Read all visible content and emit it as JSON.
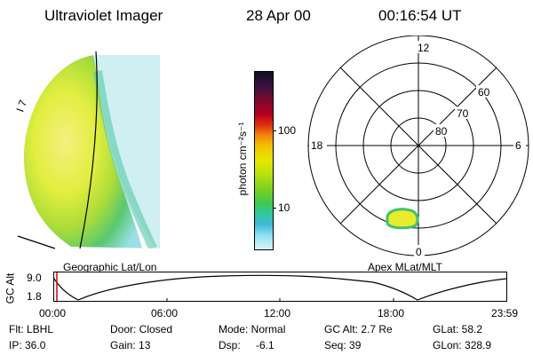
{
  "header": {
    "title": "Ultraviolet Imager",
    "date": "28 Apr 00",
    "time": "00:16:54 UT"
  },
  "image_panel": {
    "coast_label": "I 7",
    "caption": "Geographic Lat/Lon"
  },
  "colorbar": {
    "unit_label": "photon cm⁻²s⁻¹",
    "tick_100": "100",
    "tick_10": "10",
    "colors": [
      "#101020",
      "#3a1040",
      "#7a0a2a",
      "#b40020",
      "#e03010",
      "#f08a10",
      "#f2c400",
      "#e6e800",
      "#b8e010",
      "#7cd020",
      "#40c850",
      "#30c8a0",
      "#40b8d8",
      "#90e0f0",
      "#d8f4f8"
    ]
  },
  "polar_plot": {
    "mlt_top": "12",
    "mlt_left": "18",
    "mlt_right": "6",
    "mlt_bottom": "0",
    "lat_60": "60",
    "lat_70": "70",
    "lat_80": "80",
    "caption": "Apex MLat/MLT"
  },
  "altitude_strip": {
    "axis_label": "GC Alt",
    "tick_top": "9.0",
    "tick_bottom": "1.8",
    "time_ticks": [
      "00:00",
      "06:00",
      "12:00",
      "18:00",
      "23:59"
    ]
  },
  "info": {
    "filter": "Flt: LBHL",
    "ip": "IP: 36.0",
    "door": "Door: Closed",
    "gain": "Gain: 13",
    "mode": "Mode: Normal",
    "dsp_label": "Dsp:",
    "dsp_value": "-6.1",
    "gc_alt": "GC Alt: 2.7 Re",
    "seq": "Seq: 39",
    "glat": "GLat: 58.2",
    "glon": "GLon: 328.9"
  }
}
